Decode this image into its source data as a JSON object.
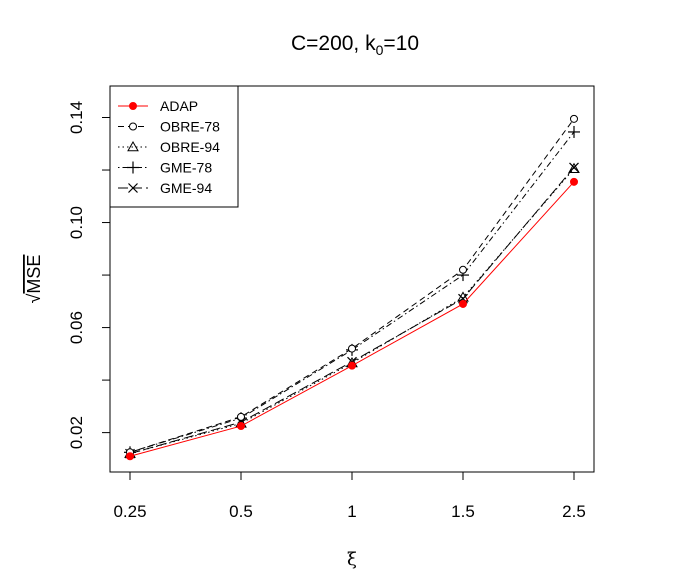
{
  "chart_data": {
    "type": "line",
    "title": "C=200, k",
    "title_subscript": "0",
    "title_suffix": "=10",
    "xlabel": "ξ",
    "ylabel": "MSE",
    "ylabel_prefix": "√",
    "categories": [
      "0.25",
      "0.5",
      "1",
      "1.5",
      "2.5"
    ],
    "ylim": [
      0.005,
      0.152
    ],
    "yticks": [
      0.02,
      0.06,
      0.1,
      0.14
    ],
    "ytick_labels": [
      "0.02",
      "0.06",
      "0.10",
      "0.14"
    ],
    "legend_position": "top-left",
    "series": [
      {
        "name": "ADAP",
        "values": [
          0.011,
          0.0225,
          0.0455,
          0.069,
          0.1155
        ],
        "color": "#ff0000",
        "dash": "solid",
        "marker": "filled-circle"
      },
      {
        "name": "OBRE-78",
        "values": [
          0.0125,
          0.026,
          0.052,
          0.082,
          0.1395
        ],
        "color": "#000000",
        "dash": "dashed",
        "marker": "open-circle"
      },
      {
        "name": "OBRE-94",
        "values": [
          0.012,
          0.0235,
          0.0465,
          0.0715,
          0.1205
        ],
        "color": "#000000",
        "dash": "dotted",
        "marker": "open-triangle"
      },
      {
        "name": "GME-78",
        "values": [
          0.0125,
          0.0255,
          0.0515,
          0.08,
          0.1345
        ],
        "color": "#000000",
        "dash": "dotdash",
        "marker": "plus"
      },
      {
        "name": "GME-94",
        "values": [
          0.012,
          0.024,
          0.047,
          0.071,
          0.121
        ],
        "color": "#000000",
        "dash": "longdash",
        "marker": "cross"
      }
    ]
  }
}
